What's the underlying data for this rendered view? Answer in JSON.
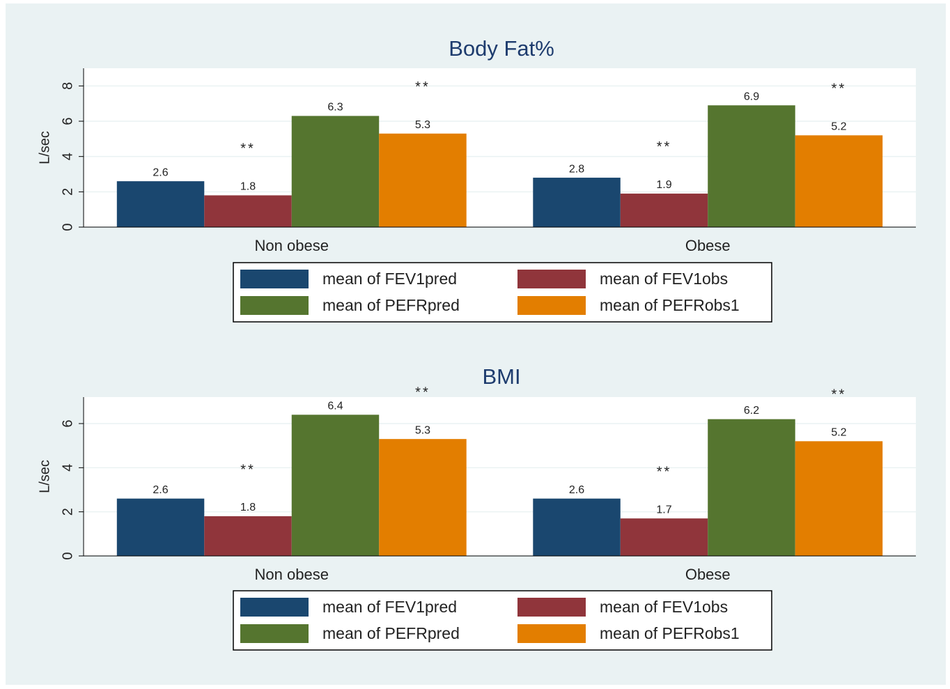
{
  "chart_data": [
    {
      "type": "bar",
      "title": "Body Fat%",
      "y_label": "L/sec",
      "categories": [
        "Non obese",
        "Obese"
      ],
      "series": [
        {
          "name": "mean of FEV1pred",
          "color": "#1a476f",
          "values": [
            2.6,
            2.8
          ]
        },
        {
          "name": "mean of FEV1obs",
          "color": "#90353b",
          "values": [
            1.8,
            1.9
          ]
        },
        {
          "name": "mean of PEFRpred",
          "color": "#55752f",
          "values": [
            6.3,
            6.9
          ]
        },
        {
          "name": "mean of PEFRobs1",
          "color": "#e37e00",
          "values": [
            5.3,
            5.2
          ]
        }
      ],
      "ylim": [
        0,
        9
      ],
      "yticks": [
        0,
        2,
        4,
        6,
        8
      ],
      "grid": true,
      "annotations": [
        {
          "text": "**",
          "category": 0,
          "series": 1
        },
        {
          "text": "**",
          "category": 0,
          "series": 3
        },
        {
          "text": "**",
          "category": 1,
          "series": 1
        },
        {
          "text": "**",
          "category": 1,
          "series": 3
        }
      ]
    },
    {
      "type": "bar",
      "title": "BMI",
      "y_label": "L/sec",
      "categories": [
        "Non obese",
        "Obese"
      ],
      "series": [
        {
          "name": "mean of FEV1pred",
          "color": "#1a476f",
          "values": [
            2.6,
            2.6
          ]
        },
        {
          "name": "mean of FEV1obs",
          "color": "#90353b",
          "values": [
            1.8,
            1.7
          ]
        },
        {
          "name": "mean of PEFRpred",
          "color": "#55752f",
          "values": [
            6.4,
            6.2
          ]
        },
        {
          "name": "mean of PEFRobs1",
          "color": "#e37e00",
          "values": [
            5.3,
            5.2
          ]
        }
      ],
      "ylim": [
        0,
        7.2
      ],
      "yticks": [
        0,
        2,
        4,
        6
      ],
      "grid": true,
      "annotations": [
        {
          "text": "**",
          "category": 0,
          "series": 1
        },
        {
          "text": "**",
          "category": 0,
          "series": 3
        },
        {
          "text": "**",
          "category": 1,
          "series": 1
        },
        {
          "text": "**",
          "category": 1,
          "series": 3
        }
      ]
    }
  ]
}
